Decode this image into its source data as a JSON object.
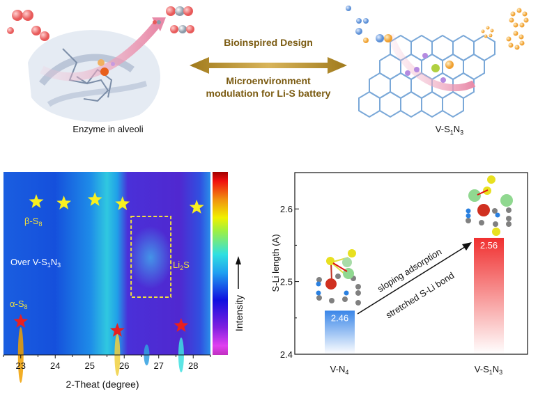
{
  "top": {
    "left_caption": "Enzyme in alveoli",
    "right_caption": {
      "base": "V-S",
      "sub1": "1",
      "mid": "N",
      "sub2": "3"
    },
    "center_title": "Bioinspired Design",
    "center_line1": "Microenvironment",
    "center_line2": "modulation for Li-S battery",
    "accent_color": "#a07a1c"
  },
  "heatmap": {
    "xlabel": "2-Theat (degree)",
    "xticks": [
      "23",
      "24",
      "25",
      "26",
      "27",
      "28"
    ],
    "xlim": [
      22.5,
      28.5
    ],
    "colorbar_label": "Intensity",
    "labels": {
      "beta": {
        "base": "β-S",
        "sub": "8"
      },
      "alpha": {
        "base": "α-S",
        "sub": "8"
      },
      "over": {
        "base": "Over V-S",
        "sub1": "1",
        "mid": "N",
        "sub2": "3"
      },
      "li2s": {
        "base": "Li",
        "sub": "2",
        "tail": "S"
      }
    },
    "yellow_star_positions_2theta": [
      23.45,
      24.25,
      25.15,
      25.95,
      28.1
    ],
    "red_star_positions_2theta": [
      23.0,
      25.8,
      27.65
    ],
    "li2s_box_range_2theta": [
      26.2,
      27.35
    ]
  },
  "chart_data": {
    "type": "bar",
    "categories": [
      "V-N4",
      "V-S1N3"
    ],
    "values": [
      2.46,
      2.56
    ],
    "data_labels": [
      "2.46",
      "2.56"
    ],
    "ylabel": "S-Li length (A)",
    "yticks": [
      "2.4",
      "2.5",
      "2.6"
    ],
    "ylim": [
      2.4,
      2.65
    ],
    "colors": [
      "#3a86e8",
      "#f03030"
    ],
    "annotations": [
      "sloping adsorption",
      "stretched S-Li bond"
    ],
    "category_labels": [
      {
        "base": "V-N",
        "sub": "4"
      },
      {
        "base": "V-S",
        "sub1": "1",
        "mid": "N",
        "sub2": "3"
      }
    ]
  }
}
